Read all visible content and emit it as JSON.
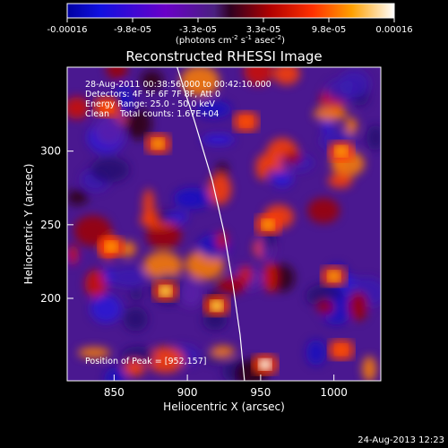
{
  "chart_data": {
    "type": "heatmap",
    "title": "Reconstructed RHESSI Image",
    "xlabel": "Heliocentric X (arcsec)",
    "ylabel": "Heliocentric Y (arcsec)",
    "x_ticks": [
      850,
      900,
      950,
      1000
    ],
    "y_ticks": [
      200,
      250,
      300
    ],
    "xlim": [
      818,
      1032
    ],
    "ylim": [
      144,
      357
    ],
    "colorbar": {
      "ticks": [
        "-0.00016",
        "-9.8e-05",
        "-3.3e-05",
        "3.3e-05",
        "9.8e-05",
        "0.00016"
      ],
      "range": [
        -0.00016,
        0.00016
      ],
      "unit_prefix": "(photons cm",
      "unit_exp1": "-2",
      "unit_mid": " s",
      "unit_exp2": "-1",
      "unit_mid2": " asec",
      "unit_exp3": "-2",
      "unit_suffix": ")",
      "colormap": "blue-purple-red-orange-yellow-white"
    },
    "annotations": {
      "time": "28-Aug-2011 00:38:56.000 to 00:42:10.000",
      "detectors": "Detectors: 4F 5F 6F 7F 8F, Att 0",
      "energy": "Energy Range: 25.0 - 50.0 keV",
      "clean": "Clean    Total counts: 1.67E+04",
      "peak": "Position of Peak = [952,157]"
    },
    "limb_curve": [
      [
        893,
        357
      ],
      [
        905,
        320
      ],
      [
        917,
        280
      ],
      [
        925,
        245
      ],
      [
        931,
        210
      ],
      [
        936,
        175
      ],
      [
        939,
        144
      ]
    ],
    "bright_spots": [
      {
        "x": 953,
        "y": 155,
        "value": 0.00016
      },
      {
        "x": 920,
        "y": 195,
        "value": 0.00014
      },
      {
        "x": 885,
        "y": 205,
        "value": 0.00013
      },
      {
        "x": 848,
        "y": 235,
        "value": 0.00012
      },
      {
        "x": 880,
        "y": 305,
        "value": 0.0001
      },
      {
        "x": 955,
        "y": 250,
        "value": 0.00011
      },
      {
        "x": 1000,
        "y": 215,
        "value": 0.0001
      },
      {
        "x": 1005,
        "y": 300,
        "value": 0.00012
      },
      {
        "x": 1005,
        "y": 165,
        "value": 9e-05
      },
      {
        "x": 940,
        "y": 320,
        "value": 9e-05
      },
      {
        "x": 845,
        "y": 330,
        "value": 8e-05
      }
    ]
  },
  "footer": {
    "timestamp": "24-Aug-2013 12:23"
  }
}
